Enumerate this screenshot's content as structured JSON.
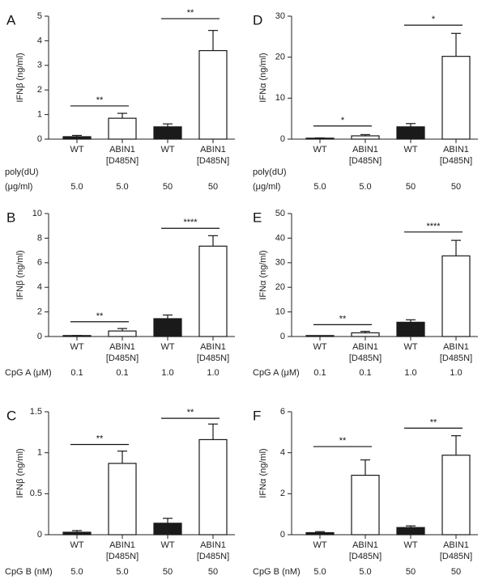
{
  "chart_data": [
    {
      "type": "bar",
      "panel": "A",
      "ylabel": "IFNβ (ng/ml)",
      "ylim": [
        0,
        5
      ],
      "yticks": [
        "0",
        "1",
        "2",
        "3",
        "4",
        "5"
      ],
      "categories": [
        [
          "WT"
        ],
        [
          "ABIN1",
          "[D485N]"
        ],
        [
          "WT"
        ],
        [
          "ABIN1",
          "[D485N]"
        ]
      ],
      "values": [
        0.1,
        0.85,
        0.5,
        3.6
      ],
      "errors": [
        0.05,
        0.2,
        0.12,
        0.82
      ],
      "fills": [
        "black",
        "white",
        "black",
        "white"
      ],
      "condition_label": [
        "poly(dU)",
        "(μg/ml)"
      ],
      "condition_values": [
        "5.0",
        "5.0",
        "50",
        "50"
      ],
      "significance": [
        {
          "pair": [
            0,
            1
          ],
          "label": "**",
          "y": 1.35
        },
        {
          "pair": [
            2,
            3
          ],
          "label": "**",
          "y": 4.9
        }
      ]
    },
    {
      "type": "bar",
      "panel": "B",
      "ylabel": "IFNβ (ng/ml)",
      "ylim": [
        0,
        10
      ],
      "yticks": [
        "0",
        "2",
        "4",
        "6",
        "8",
        "10"
      ],
      "categories": [
        [
          "WT"
        ],
        [
          "ABIN1",
          "[D485N]"
        ],
        [
          "WT"
        ],
        [
          "ABIN1",
          "[D485N]"
        ]
      ],
      "values": [
        0.05,
        0.45,
        1.45,
        7.35
      ],
      "errors": [
        0.03,
        0.2,
        0.3,
        0.85
      ],
      "fills": [
        "black",
        "white",
        "black",
        "white"
      ],
      "condition_label": [
        "CpG A (μM)"
      ],
      "condition_values": [
        "0.1",
        "0.1",
        "1.0",
        "1.0"
      ],
      "significance": [
        {
          "pair": [
            0,
            1
          ],
          "label": "**",
          "y": 1.2
        },
        {
          "pair": [
            2,
            3
          ],
          "label": "****",
          "y": 8.8
        }
      ]
    },
    {
      "type": "bar",
      "panel": "C",
      "ylabel": "IFNβ (ng/ml)",
      "ylim": [
        0,
        1.5
      ],
      "yticks": [
        "0",
        "0.5",
        "1",
        "1.5"
      ],
      "categories": [
        [
          "WT"
        ],
        [
          "ABIN1",
          "[D485N]"
        ],
        [
          "WT"
        ],
        [
          "ABIN1",
          "[D485N]"
        ]
      ],
      "values": [
        0.03,
        0.87,
        0.14,
        1.16
      ],
      "errors": [
        0.02,
        0.15,
        0.06,
        0.19
      ],
      "fills": [
        "black",
        "white",
        "black",
        "white"
      ],
      "condition_label": [
        "CpG B (nM)"
      ],
      "condition_values": [
        "5.0",
        "5.0",
        "50",
        "50"
      ],
      "significance": [
        {
          "pair": [
            0,
            1
          ],
          "label": "**",
          "y": 1.1
        },
        {
          "pair": [
            2,
            3
          ],
          "label": "**",
          "y": 1.42
        }
      ]
    },
    {
      "type": "bar",
      "panel": "D",
      "ylabel": "IFNα (ng/ml)",
      "ylim": [
        0,
        30
      ],
      "yticks": [
        "0",
        "10",
        "20",
        "30"
      ],
      "categories": [
        [
          "WT"
        ],
        [
          "ABIN1",
          "[D485N]"
        ],
        [
          "WT"
        ],
        [
          "ABIN1",
          "[D485N]"
        ]
      ],
      "values": [
        0.2,
        0.8,
        3.0,
        20.2
      ],
      "errors": [
        0.1,
        0.3,
        0.8,
        5.6
      ],
      "fills": [
        "black",
        "white",
        "black",
        "white"
      ],
      "condition_label": [
        "poly(dU)",
        "(μg/ml)"
      ],
      "condition_values": [
        "5.0",
        "5.0",
        "50",
        "50"
      ],
      "significance": [
        {
          "pair": [
            0,
            1
          ],
          "label": "*",
          "y": 3.2
        },
        {
          "pair": [
            2,
            3
          ],
          "label": "*",
          "y": 27.8
        }
      ]
    },
    {
      "type": "bar",
      "panel": "E",
      "ylabel": "IFNα (ng/ml)",
      "ylim": [
        0,
        50
      ],
      "yticks": [
        "0",
        "10",
        "20",
        "30",
        "40",
        "50"
      ],
      "categories": [
        [
          "WT"
        ],
        [
          "ABIN1",
          "[D485N]"
        ],
        [
          "WT"
        ],
        [
          "ABIN1",
          "[D485N]"
        ]
      ],
      "values": [
        0.2,
        1.5,
        5.8,
        32.8
      ],
      "errors": [
        0.1,
        0.6,
        1.0,
        6.3
      ],
      "fills": [
        "black",
        "white",
        "black",
        "white"
      ],
      "condition_label": [
        "CpG A (μM)"
      ],
      "condition_values": [
        "0.1",
        "0.1",
        "1.0",
        "1.0"
      ],
      "significance": [
        {
          "pair": [
            0,
            1
          ],
          "label": "**",
          "y": 4.8
        },
        {
          "pair": [
            2,
            3
          ],
          "label": "****",
          "y": 42.5
        }
      ]
    },
    {
      "type": "bar",
      "panel": "F",
      "ylabel": "IFNα (ng/ml)",
      "ylim": [
        0,
        6
      ],
      "yticks": [
        "0",
        "2",
        "4",
        "6"
      ],
      "categories": [
        [
          "WT"
        ],
        [
          "ABIN1",
          "[D485N]"
        ],
        [
          "WT"
        ],
        [
          "ABIN1",
          "[D485N]"
        ]
      ],
      "values": [
        0.1,
        2.9,
        0.35,
        3.88
      ],
      "errors": [
        0.05,
        0.75,
        0.08,
        0.95
      ],
      "fills": [
        "black",
        "white",
        "black",
        "white"
      ],
      "condition_label": [
        "CpG B (nM)"
      ],
      "condition_values": [
        "5.0",
        "5.0",
        "50",
        "50"
      ],
      "significance": [
        {
          "pair": [
            0,
            1
          ],
          "label": "**",
          "y": 4.3
        },
        {
          "pair": [
            2,
            3
          ],
          "label": "**",
          "y": 5.2
        }
      ]
    }
  ]
}
